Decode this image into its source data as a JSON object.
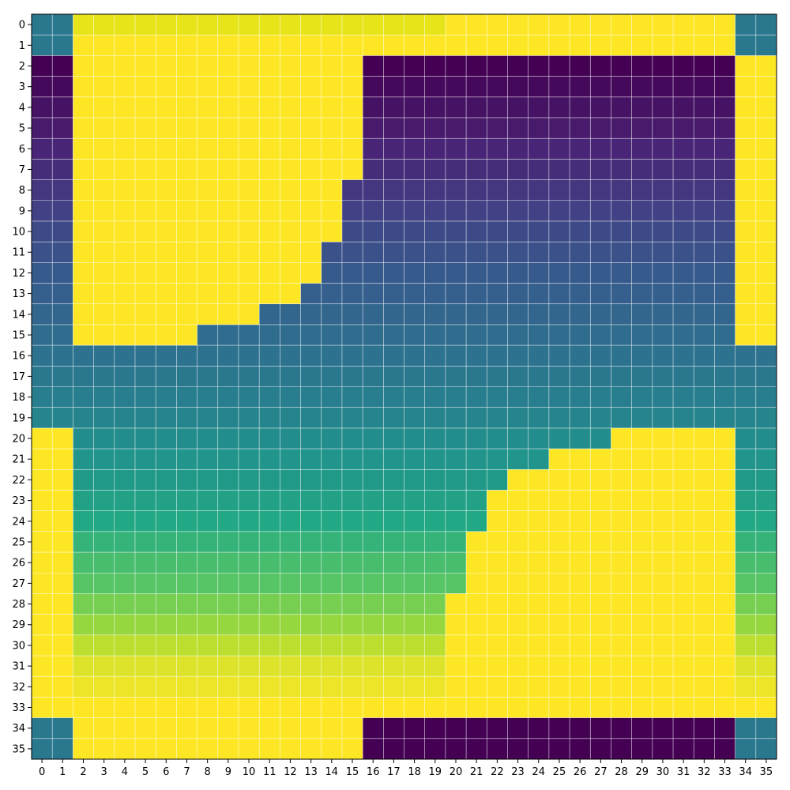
{
  "chart_data": {
    "type": "heatmap",
    "title": "",
    "xlabel": "",
    "ylabel": "",
    "colormap": "viridis",
    "grid": true,
    "x_ticks": [
      0,
      1,
      2,
      3,
      4,
      5,
      6,
      7,
      8,
      9,
      10,
      11,
      12,
      13,
      14,
      15,
      16,
      17,
      18,
      19,
      20,
      21,
      22,
      23,
      24,
      25,
      26,
      27,
      28,
      29,
      30,
      31,
      32,
      33,
      34,
      35
    ],
    "y_ticks": [
      0,
      1,
      2,
      3,
      4,
      5,
      6,
      7,
      8,
      9,
      10,
      11,
      12,
      13,
      14,
      15,
      16,
      17,
      18,
      19,
      20,
      21,
      22,
      23,
      24,
      25,
      26,
      27,
      28,
      29,
      30,
      31,
      32,
      33,
      34,
      35
    ],
    "xlim": [
      -0.5,
      35.5
    ],
    "ylim": [
      35.5,
      -0.5
    ],
    "value_range": [
      0,
      1
    ],
    "row_values": [
      0.5,
      0.5,
      0.0,
      0.03,
      0.06,
      0.09,
      0.13,
      0.16,
      0.2,
      0.24,
      0.28,
      0.31,
      0.35,
      0.38,
      0.41,
      0.44,
      0.47,
      0.5,
      0.53,
      0.56,
      0.6,
      0.64,
      0.67,
      0.71,
      0.75,
      0.79,
      0.83,
      0.86,
      0.9,
      0.93,
      0.96,
      0.98,
      0.99,
      0.999,
      0.5,
      0.5
    ],
    "top_band_color": "#e7e419",
    "fill_value": 1.0,
    "corners": {
      "top": [
        0,
        1
      ],
      "bottom": [
        34,
        35
      ],
      "left": [
        0,
        1
      ],
      "right": [
        34,
        35
      ],
      "value": 0.5
    },
    "left_yellow_region": {
      "rows": [
        2,
        15
      ],
      "column_range": [
        2,
        15
      ],
      "row_end_columns": [
        15,
        15,
        15,
        15,
        15,
        15,
        14,
        14,
        14,
        13,
        13,
        12,
        10,
        7
      ]
    },
    "right_yellow_region": {
      "rows": [
        20,
        33
      ],
      "column_range": [
        20,
        33
      ],
      "row_start_columns": [
        28,
        25,
        23,
        22,
        22,
        21,
        21,
        21,
        20,
        20,
        20,
        20,
        20,
        20
      ]
    },
    "edge_yellow_bands": {
      "right_column_rows": [
        2,
        15
      ],
      "left_column_rows": [
        20,
        33
      ],
      "top_rows": [
        0,
        1
      ],
      "bottom_rows": [
        34,
        35
      ]
    },
    "dark_block_rows_34_35": {
      "columns": [
        16,
        33
      ],
      "value": 0.0
    }
  }
}
